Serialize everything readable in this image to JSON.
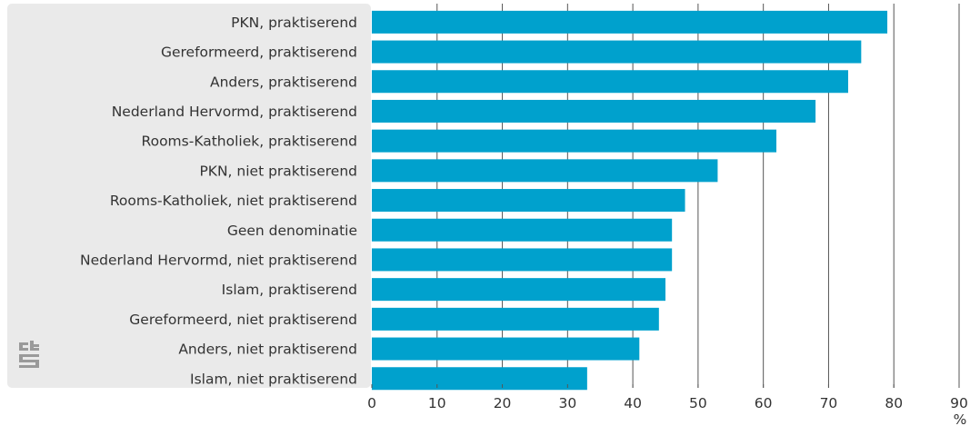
{
  "chart_data": {
    "type": "bar",
    "orientation": "horizontal",
    "categories": [
      "PKN, praktiserend",
      "Gereformeerd, praktiserend",
      "Anders, praktiserend",
      "Nederland Hervormd, praktiserend",
      "Rooms-Katholiek, praktiserend",
      "PKN, niet praktiserend",
      "Rooms-Katholiek, niet praktiserend",
      "Geen denominatie",
      "Nederland Hervormd, niet praktiserend",
      "Islam, praktiserend",
      "Gereformeerd, niet praktiserend",
      "Anders, niet praktiserend",
      "Islam, niet praktiserend"
    ],
    "values": [
      79,
      75,
      73,
      68,
      62,
      53,
      48,
      46,
      46,
      45,
      44,
      41,
      33
    ],
    "xlim": [
      0,
      90
    ],
    "xticks": [
      0,
      10,
      20,
      30,
      40,
      50,
      60,
      70,
      80,
      90
    ],
    "xunit": "%",
    "grid": "vertical",
    "bar_color": "#00a1cd",
    "label_panel_color": "#eaeaea",
    "gridline_color": "#555555",
    "logo": "cbs-logo-icon"
  }
}
